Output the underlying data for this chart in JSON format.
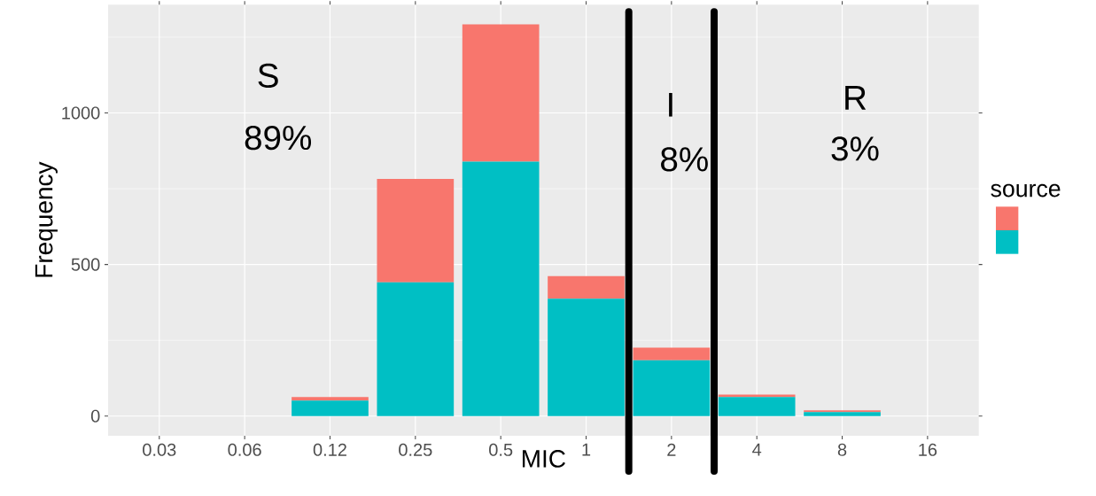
{
  "chart_data": {
    "type": "bar",
    "stacked": true,
    "xlabel": "MIC",
    "ylabel": "Frequency",
    "legend_title": "source",
    "grid": true,
    "categories": [
      "0.03",
      "0.06",
      "0.12",
      "0.25",
      "0.5",
      "1",
      "2",
      "4",
      "8",
      "16"
    ],
    "series": [
      {
        "color": "#00bfc4",
        "values": [
          0,
          0,
          51,
          441,
          839,
          387,
          184,
          63,
          13,
          0
        ]
      },
      {
        "color": "#f8766d",
        "values": [
          0,
          0,
          12,
          341,
          453,
          75,
          42,
          8,
          6,
          0
        ]
      }
    ],
    "ylim": [
      -65,
      1357
    ],
    "yticks": [
      0,
      {
        "value": 250,
        "label": null
      },
      500,
      {
        "value": 750,
        "label": null
      },
      1000,
      {
        "value": 1250,
        "label": null
      }
    ],
    "annotations": [
      "S",
      "89%",
      "I",
      "8%",
      "R",
      "3%"
    ]
  }
}
